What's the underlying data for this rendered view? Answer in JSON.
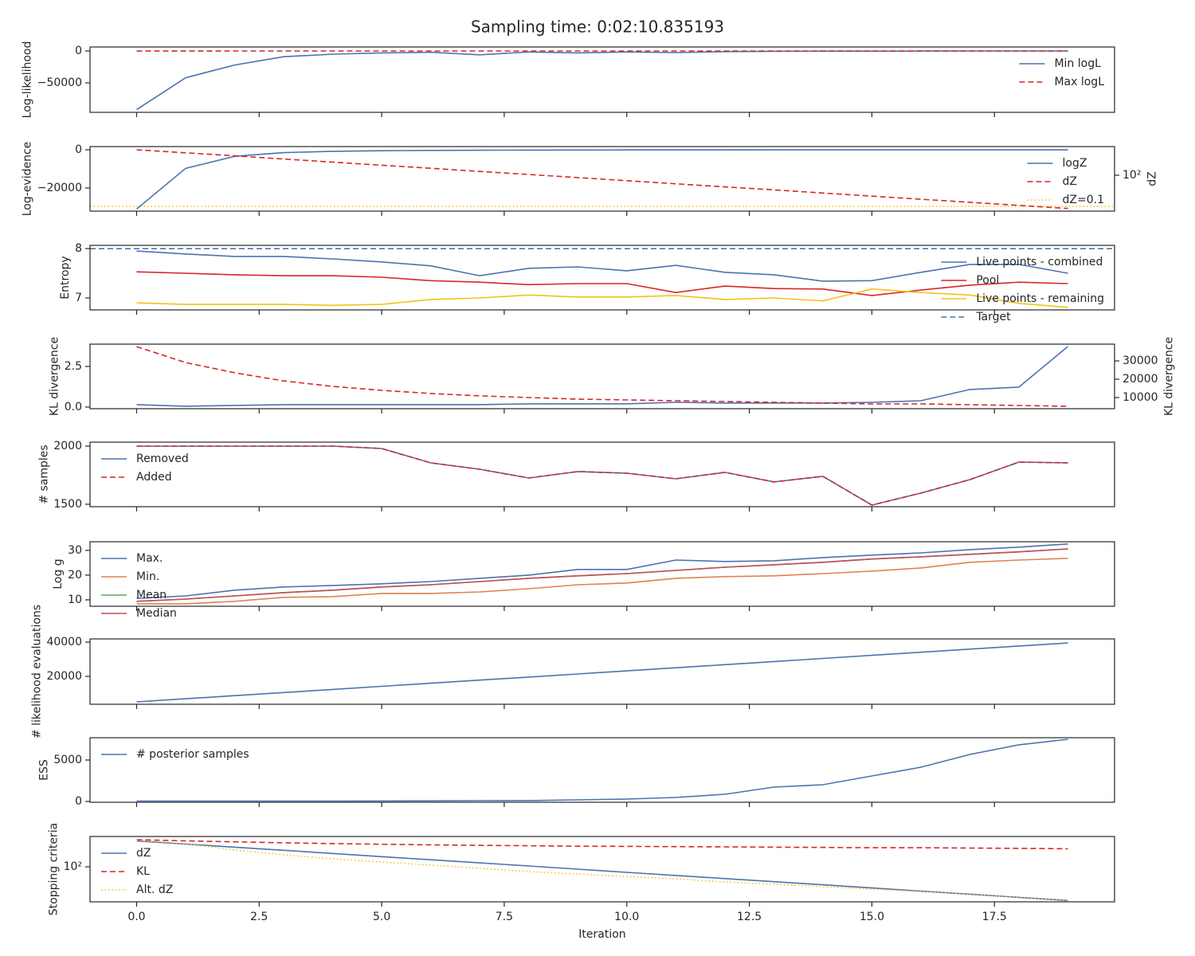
{
  "title": "Sampling time: 0:02:10.835193",
  "xlabel": "Iteration",
  "x": [
    0,
    1,
    2,
    3,
    4,
    5,
    6,
    7,
    8,
    9,
    10,
    11,
    12,
    13,
    14,
    15,
    16,
    17,
    18,
    19
  ],
  "xlim": [
    -0.95,
    19.95
  ],
  "xticks": [
    {
      "value": 0,
      "label": "0.0"
    },
    2.5,
    {
      "value": 5,
      "label": "5.0"
    },
    7.5,
    {
      "value": 10,
      "label": "10.0"
    },
    12.5,
    {
      "value": 15,
      "label": "15.0"
    },
    17.5
  ],
  "chart_data": [
    {
      "type": "line",
      "ylabel": "Log-likelihood",
      "ylim": [
        -96250,
        6250
      ],
      "yticks": [
        0,
        {
          "value": -50000,
          "label": "−50000"
        }
      ],
      "legend": "upper right",
      "series": [
        {
          "name": "Min logL",
          "color": "#4c72b0",
          "style": "solid",
          "values": [
            -92000,
            -42000,
            -22000,
            -9000,
            -5000,
            -3000,
            -2000,
            -6000,
            -1500,
            -3000,
            -1500,
            -2500,
            -1000,
            -500,
            -300,
            -200,
            -100,
            -50,
            -20,
            -10
          ]
        },
        {
          "name": "Max logL",
          "color": "#d62728",
          "style": "dashed",
          "values": [
            -100,
            -80,
            -60,
            -50,
            -40,
            -35,
            -30,
            -28,
            -25,
            -22,
            -20,
            -18,
            -16,
            -15,
            -14,
            -13,
            -12,
            -11,
            -10,
            -10
          ]
        }
      ]
    },
    {
      "type": "line",
      "ylabel": "Log-evidence",
      "y2label": "dZ",
      "ylim": [
        -32083,
        1667
      ],
      "yticks": [
        0,
        {
          "value": -20000,
          "label": "−20000"
        }
      ],
      "y2lim": [
        0.035,
        58000
      ],
      "y2log": true,
      "y2ticks": [
        {
          "value": 100,
          "label": "10²"
        }
      ],
      "legend": "right",
      "series": [
        {
          "name": "logZ",
          "color": "#4c72b0",
          "style": "solid",
          "values": [
            -31000,
            -9700,
            -3400,
            -1500,
            -800,
            -500,
            -350,
            -250,
            -180,
            -130,
            -100,
            -80,
            -65,
            -55,
            -48,
            -42,
            -38,
            -35,
            -33,
            -32
          ]
        },
        {
          "name": "dZ",
          "color": "#d62728",
          "style": "dashed",
          "axis": "y2",
          "values": [
            28800,
            14500,
            7400,
            3700,
            1860,
            930,
            470,
            235,
            120,
            60,
            30,
            15,
            7.6,
            3.9,
            1.95,
            0.98,
            0.49,
            0.25,
            0.125,
            0.063
          ]
        }
      ],
      "hlines": [
        {
          "name": "dZ=0.1",
          "value": 0.1,
          "axis": "y2",
          "color": "#f2c318",
          "style": "dotted"
        }
      ]
    },
    {
      "type": "line",
      "ylabel": "Entropy",
      "ylim": [
        6.758,
        8.065
      ],
      "yticks": [
        7,
        8
      ],
      "legend": "right",
      "series": [
        {
          "name": "Live points - combined",
          "color": "#4c72b0",
          "style": "solid",
          "values": [
            7.95,
            7.89,
            7.84,
            7.84,
            7.79,
            7.73,
            7.65,
            7.45,
            7.6,
            7.63,
            7.55,
            7.66,
            7.52,
            7.47,
            7.34,
            7.35,
            7.52,
            7.68,
            7.68,
            7.5
          ]
        },
        {
          "name": "Pool",
          "color": "#d62728",
          "style": "solid",
          "values": [
            7.53,
            7.5,
            7.47,
            7.45,
            7.45,
            7.42,
            7.35,
            7.32,
            7.27,
            7.29,
            7.29,
            7.11,
            7.24,
            7.19,
            7.18,
            7.05,
            7.16,
            7.26,
            7.32,
            7.29
          ]
        },
        {
          "name": "Live points - remaining",
          "color": "#f2c318",
          "style": "solid",
          "values": [
            6.9,
            6.87,
            6.87,
            6.87,
            6.85,
            6.87,
            6.97,
            7.0,
            7.06,
            7.02,
            7.02,
            7.05,
            6.97,
            7.0,
            6.94,
            7.18,
            7.11,
            7.06,
            6.89,
            6.81
          ]
        }
      ],
      "hlines": [
        {
          "name": "Target",
          "value": 8,
          "color": "#4c72b0",
          "style": "dashed"
        }
      ]
    },
    {
      "type": "line",
      "ylabel": "KL divergence",
      "y2label": "KL divergence",
      "ylim": [
        -0.1,
        3.87
      ],
      "yticks": [
        {
          "value": 0,
          "label": "0.0"
        },
        2.5
      ],
      "y2lim": [
        3913,
        39130
      ],
      "y2ticks": [
        10000,
        20000,
        30000
      ],
      "series": [
        {
          "color": "#4c72b0",
          "style": "solid",
          "values": [
            0.15,
            0.05,
            0.1,
            0.15,
            0.15,
            0.15,
            0.15,
            0.15,
            0.2,
            0.2,
            0.2,
            0.29,
            0.25,
            0.25,
            0.25,
            0.29,
            0.39,
            1.08,
            1.23,
            3.73
          ]
        },
        {
          "color": "#d62728",
          "style": "dashed",
          "axis": "y2",
          "values": [
            37800,
            29100,
            23500,
            19100,
            16100,
            13900,
            12200,
            10900,
            10000,
            9130,
            8700,
            8260,
            7830,
            7390,
            6960,
            6520,
            6520,
            6090,
            5650,
            5220
          ]
        }
      ]
    },
    {
      "type": "line",
      "ylabel": "# samples",
      "ylim": [
        1479,
        2034
      ],
      "yticks": [
        1500,
        2000
      ],
      "legend": "upper left",
      "series": [
        {
          "name": "Removed",
          "color": "#4c72b0",
          "style": "solid",
          "values": [
            2000,
            2000,
            2000,
            2000,
            2000,
            1979,
            1856,
            1801,
            1726,
            1781,
            1767,
            1719,
            1774,
            1692,
            1740,
            1493,
            1596,
            1712,
            1863,
            1856
          ]
        },
        {
          "name": "Added",
          "color": "#d62728",
          "style": "dashed",
          "values": [
            2000,
            2000,
            2000,
            2000,
            2000,
            1979,
            1856,
            1801,
            1726,
            1781,
            1767,
            1719,
            1774,
            1692,
            1740,
            1493,
            1596,
            1712,
            1863,
            1856
          ]
        }
      ]
    },
    {
      "type": "line",
      "ylabel": "Log g",
      "ylim": [
        7.4,
        33.5
      ],
      "yticks": [
        10,
        20,
        30
      ],
      "legend": "upper left",
      "series": [
        {
          "name": "Max.",
          "color": "#4c72b0",
          "style": "solid",
          "values": [
            10.6,
            11.6,
            13.9,
            15.2,
            15.8,
            16.5,
            17.4,
            18.7,
            20,
            22.3,
            22.3,
            26.1,
            25.5,
            25.8,
            27.1,
            28.1,
            29,
            30.3,
            31.3,
            32.6
          ]
        },
        {
          "name": "Min.",
          "color": "#dd8452",
          "style": "solid",
          "values": [
            8.4,
            8.4,
            9.4,
            11,
            11.3,
            12.6,
            12.6,
            13.2,
            14.5,
            16.1,
            16.8,
            18.7,
            19.4,
            19.7,
            20.6,
            21.6,
            22.9,
            25.2,
            26.1,
            26.8
          ]
        },
        {
          "name": "Mean",
          "color": "#55a868",
          "style": "solid",
          "values": [
            9.4,
            10.3,
            11.6,
            12.9,
            13.9,
            15.2,
            16.1,
            17.4,
            18.7,
            19.7,
            20.6,
            21.9,
            23.2,
            24.2,
            25.2,
            26.5,
            27.4,
            28.4,
            29.4,
            30.6
          ]
        },
        {
          "name": "Median",
          "color": "#c44e52",
          "style": "solid",
          "values": [
            9.4,
            10.3,
            11.6,
            12.9,
            13.9,
            15.2,
            16.1,
            17.4,
            18.7,
            19.7,
            20.6,
            21.9,
            23.2,
            24.2,
            25.2,
            26.5,
            27.4,
            28.4,
            29.4,
            30.6
          ]
        }
      ]
    },
    {
      "type": "line",
      "ylabel": "# likelihood evaluations",
      "ylim": [
        3720,
        41860
      ],
      "yticks": [
        20000,
        40000
      ],
      "series": [
        {
          "color": "#4c72b0",
          "style": "solid",
          "values": [
            5120,
            6930,
            8740,
            10550,
            12360,
            14170,
            15980,
            17790,
            19600,
            21410,
            23220,
            25030,
            26840,
            28650,
            30460,
            32270,
            34080,
            35890,
            37700,
            39510
          ]
        }
      ]
    },
    {
      "type": "line",
      "ylabel": "ESS",
      "ylim": [
        -96,
        7690
      ],
      "yticks": [
        0,
        5000
      ],
      "legend": "upper left",
      "series": [
        {
          "name": "# posterior samples",
          "color": "#4c72b0",
          "style": "solid",
          "values": [
            50,
            50,
            50,
            50,
            50,
            60,
            70,
            100,
            110,
            190,
            290,
            480,
            870,
            1730,
            2020,
            3080,
            4130,
            5670,
            6830,
            7500
          ]
        }
      ]
    },
    {
      "type": "line",
      "ylabel": "Stopping criteria",
      "ylim": [
        0.047,
        76000
      ],
      "ylog": true,
      "yticks": [
        {
          "value": 100,
          "label": "10²"
        }
      ],
      "legend": "left",
      "series": [
        {
          "name": "dZ",
          "color": "#4c72b0",
          "style": "solid",
          "values": [
            28800,
            14500,
            7400,
            3700,
            1860,
            930,
            470,
            235,
            120,
            60,
            30,
            15,
            7.6,
            3.9,
            1.95,
            0.98,
            0.49,
            0.25,
            0.125,
            0.063
          ]
        },
        {
          "name": "KL",
          "color": "#d62728",
          "style": "dashed",
          "values": [
            37800,
            29100,
            23500,
            19100,
            16100,
            13900,
            12200,
            10900,
            10000,
            9130,
            8700,
            8260,
            7830,
            7390,
            6960,
            6520,
            6520,
            6090,
            5650,
            5220
          ]
        },
        {
          "name": "Alt. dZ",
          "color": "#f2c318",
          "style": "dotted",
          "values": [
            31600,
            15900,
            3900,
            1370,
            575,
            285,
            142,
            71,
            35,
            21,
            12,
            7.3,
            3.6,
            2.2,
            1.3,
            0.76,
            0.45,
            0.26,
            0.13,
            0.066
          ]
        }
      ]
    }
  ]
}
